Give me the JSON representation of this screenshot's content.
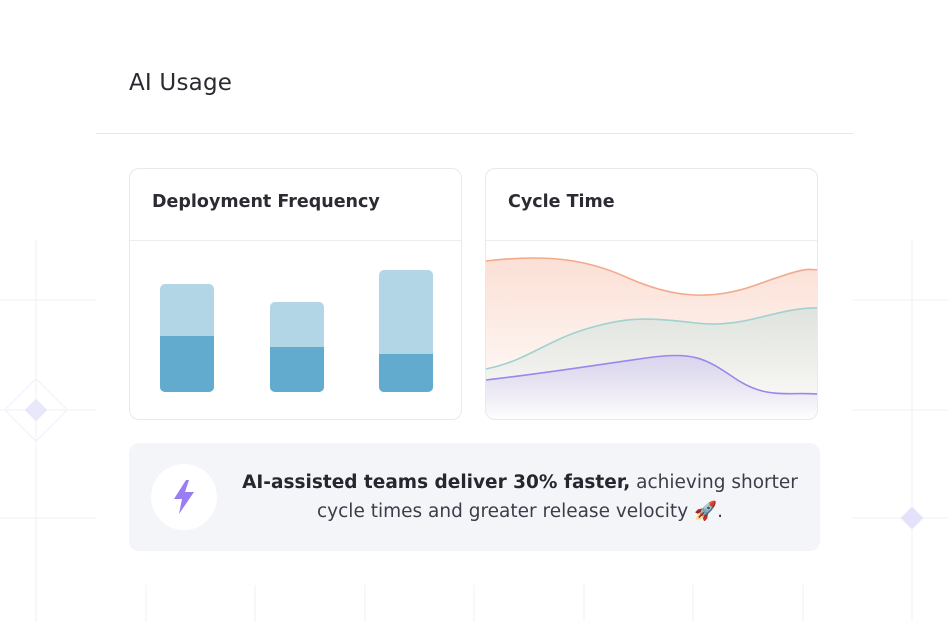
{
  "section": {
    "title": "AI Usage"
  },
  "cards": {
    "deployment": {
      "title": "Deployment Frequency"
    },
    "cycle": {
      "title": "Cycle Time"
    }
  },
  "banner": {
    "icon": "lightning-bolt-icon",
    "bold_text": "AI-assisted teams deliver 30% faster,",
    "text": " achieving shorter cycle times and greater release velocity ",
    "emoji": "🚀",
    "end": "."
  },
  "colors": {
    "bar_light": "#b2d6e6",
    "bar_dark": "#62abcf",
    "line_orange": "#f3a98d",
    "line_teal": "#9fd2d0",
    "line_purple": "#9d86ec",
    "bolt": "#9a7cf3"
  }
}
